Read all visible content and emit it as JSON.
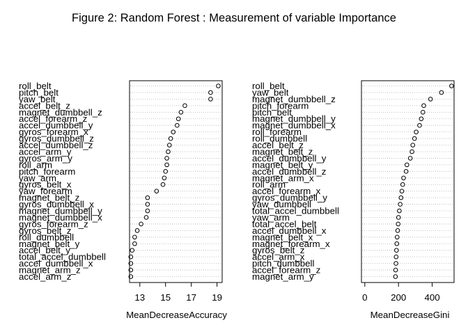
{
  "title": "Figure 2: Random Forest : Measurement of variable Importance",
  "chart_data": [
    {
      "type": "dotchart",
      "xlabel": "MeanDecreaseAccuracy",
      "ylabel": "",
      "xlim": [
        12.2,
        19.4
      ],
      "xticks": [
        13,
        15,
        17,
        19
      ],
      "grid": "dotted horizontal lines",
      "categories": [
        "roll_belt",
        "pitch_belt",
        "yaw_belt",
        "accel_belt_z",
        "magnet_dumbbell_z",
        "accel_forearm_z",
        "accel_dumbbell_y",
        "gyros_forearm_x",
        "gyros_dumbbell_z",
        "accel_dumbbell_z",
        "accel_arm_y",
        "gyros_arm_y",
        "roll_arm",
        "pitch_forearm",
        "yaw_arm",
        "gyros_belt_x",
        "yaw_forearm",
        "magnet_belt_z",
        "gyros_dumbbell_x",
        "magnet_dumbbell_y",
        "magnet_dumbbell_x",
        "gyros_forearm_z",
        "gyros_belt_z",
        "roll_dumbbell",
        "magnet_belt_y",
        "accel_belt_y",
        "total_accel_dumbbell",
        "accel_dumbbell_x",
        "magnet_arm_z",
        "accel_arm_z"
      ],
      "values": [
        19.1,
        18.5,
        18.5,
        16.5,
        16.2,
        16.0,
        15.9,
        15.6,
        15.4,
        15.3,
        15.2,
        15.1,
        15.1,
        15.0,
        14.9,
        14.8,
        14.3,
        13.6,
        13.6,
        13.6,
        13.5,
        13.1,
        12.8,
        12.6,
        12.6,
        12.4,
        12.3,
        12.3,
        12.3,
        12.3
      ]
    },
    {
      "type": "dotchart",
      "xlabel": "MeanDecreaseGini",
      "ylabel": "",
      "xlim": [
        -20,
        530
      ],
      "xticks": [
        0,
        200,
        400
      ],
      "grid": "dotted horizontal lines",
      "categories": [
        "roll_belt",
        "yaw_belt",
        "magnet_dumbbell_z",
        "pitch_forearm",
        "pitch_belt",
        "magnet_dumbbell_y",
        "magnet_dumbbell_x",
        "roll_forearm",
        "roll_dumbbell",
        "accel_belt_z",
        "magnet_belt_z",
        "accel_dumbbell_y",
        "magnet_belt_y",
        "accel_dumbbell_z",
        "magnet_arm_x",
        "roll_arm",
        "accel_forearm_x",
        "gyros_dumbbell_y",
        "yaw_dumbbell",
        "total_accel_dumbbell",
        "yaw_arm",
        "total_accel_belt",
        "accel_dumbbell_x",
        "magnet_belt_x",
        "magnet_forearm_x",
        "gyros_belt_z",
        "accel_arm_x",
        "pitch_dumbbell",
        "accel_forearm_z",
        "magnet_arm_y"
      ],
      "values": [
        515,
        455,
        390,
        350,
        345,
        335,
        325,
        305,
        295,
        285,
        280,
        270,
        250,
        245,
        230,
        225,
        220,
        215,
        210,
        205,
        200,
        198,
        195,
        192,
        190,
        188,
        186,
        185,
        183,
        182
      ]
    }
  ]
}
